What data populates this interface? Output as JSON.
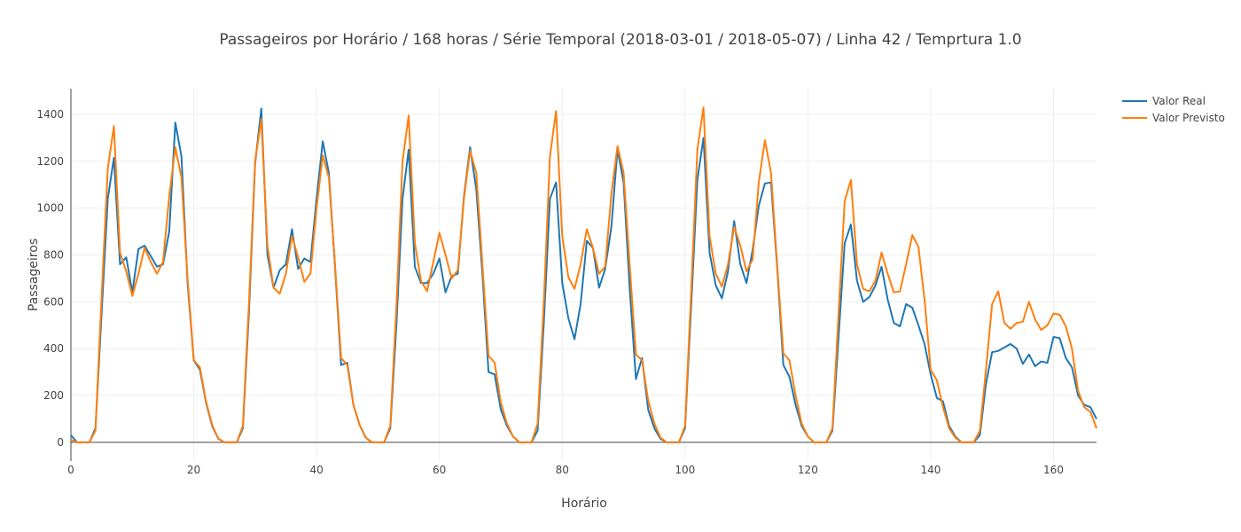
{
  "chart_data": {
    "type": "line",
    "title": "Passageiros por Horário / 168 horas / Série Temporal (2018-03-01 / 2018-05-07) / Linha 42 / Temprtura 1.0",
    "xlabel": "Horário",
    "ylabel": "Passageiros",
    "xlim": [
      0,
      167
    ],
    "ylim": [
      -80,
      1510
    ],
    "xticks": [
      0,
      20,
      40,
      60,
      80,
      100,
      120,
      140,
      160
    ],
    "yticks": [
      0,
      200,
      400,
      600,
      800,
      1000,
      1200,
      1400
    ],
    "grid": true,
    "legend_position": "top-right",
    "series": [
      {
        "name": "Valor Real",
        "color": "#1f77b4",
        "values": [
          30,
          0,
          0,
          0,
          60,
          550,
          1040,
          1215,
          760,
          790,
          640,
          825,
          840,
          795,
          750,
          760,
          900,
          1365,
          1220,
          680,
          350,
          310,
          170,
          70,
          15,
          0,
          0,
          0,
          60,
          560,
          1190,
          1425,
          800,
          660,
          735,
          760,
          910,
          740,
          785,
          770,
          1040,
          1285,
          1150,
          750,
          330,
          340,
          160,
          75,
          20,
          0,
          0,
          0,
          60,
          500,
          1040,
          1250,
          750,
          680,
          680,
          720,
          785,
          640,
          710,
          720,
          1050,
          1260,
          1080,
          720,
          300,
          290,
          140,
          70,
          25,
          0,
          0,
          0,
          50,
          510,
          1040,
          1110,
          680,
          530,
          440,
          590,
          860,
          830,
          660,
          740,
          920,
          1250,
          1110,
          650,
          270,
          360,
          140,
          60,
          15,
          0,
          0,
          0,
          60,
          580,
          1120,
          1300,
          810,
          670,
          615,
          730,
          945,
          760,
          680,
          820,
          1010,
          1105,
          1110,
          750,
          330,
          280,
          160,
          70,
          25,
          0,
          0,
          0,
          50,
          450,
          850,
          930,
          690,
          600,
          620,
          670,
          750,
          610,
          510,
          495,
          590,
          575,
          500,
          420,
          290,
          190,
          175,
          70,
          25,
          0,
          0,
          0,
          30,
          250,
          385,
          390,
          405,
          420,
          400,
          335,
          375,
          325,
          345,
          340,
          450,
          445,
          360,
          320,
          200,
          160,
          150,
          100
        ],
        "values_note_removed": true
      },
      {
        "name": "Valor Previsto",
        "color": "#ff7f0e",
        "values": [
          10,
          0,
          0,
          0,
          50,
          620,
          1170,
          1350,
          810,
          730,
          625,
          720,
          830,
          770,
          720,
          770,
          1050,
          1260,
          1130,
          700,
          350,
          320,
          175,
          75,
          15,
          0,
          0,
          0,
          70,
          600,
          1200,
          1380,
          840,
          660,
          635,
          720,
          880,
          790,
          685,
          720,
          1000,
          1225,
          1130,
          760,
          360,
          330,
          160,
          75,
          20,
          0,
          0,
          0,
          70,
          580,
          1200,
          1395,
          850,
          690,
          645,
          770,
          895,
          800,
          700,
          735,
          1040,
          1245,
          1150,
          760,
          370,
          340,
          170,
          80,
          25,
          0,
          0,
          0,
          80,
          600,
          1220,
          1415,
          880,
          705,
          655,
          760,
          910,
          830,
          720,
          750,
          1060,
          1265,
          1150,
          750,
          375,
          350,
          180,
          80,
          20,
          0,
          0,
          0,
          70,
          640,
          1250,
          1430,
          880,
          720,
          665,
          760,
          920,
          840,
          730,
          780,
          1110,
          1290,
          1150,
          760,
          380,
          350,
          200,
          80,
          25,
          0,
          0,
          0,
          60,
          550,
          1030,
          1120,
          760,
          655,
          645,
          690,
          810,
          720,
          640,
          645,
          760,
          885,
          835,
          610,
          310,
          265,
          150,
          60,
          20,
          0,
          0,
          0,
          50,
          310,
          590,
          645,
          510,
          485,
          510,
          515,
          600,
          525,
          480,
          500,
          550,
          545,
          495,
          400,
          220,
          150,
          130,
          60
        ]
      }
    ]
  }
}
